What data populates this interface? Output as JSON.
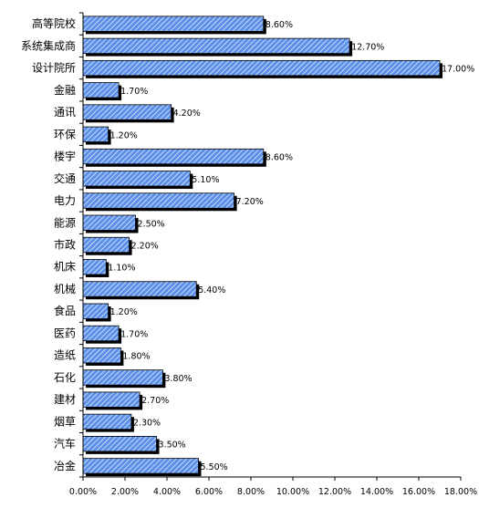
{
  "chart_data": {
    "type": "bar",
    "orientation": "horizontal",
    "categories": [
      "高等院校",
      "系统集成商",
      "设计院所",
      "金融",
      "通讯",
      "环保",
      "楼宇",
      "交通",
      "电力",
      "能源",
      "市政",
      "机床",
      "机械",
      "食品",
      "医药",
      "造纸",
      "石化",
      "建材",
      "烟草",
      "汽车",
      "冶金"
    ],
    "values": [
      8.6,
      12.7,
      17.0,
      1.7,
      4.2,
      1.2,
      8.6,
      5.1,
      7.2,
      2.5,
      2.2,
      1.1,
      5.4,
      1.2,
      1.7,
      1.8,
      3.8,
      2.7,
      2.3,
      3.5,
      5.5
    ],
    "value_labels": [
      "8.60%",
      "12.70%",
      "17.00%",
      "1.70%",
      "4.20%",
      "1.20%",
      "8.60%",
      "5.10%",
      "7.20%",
      "2.50%",
      "2.20%",
      "1.10%",
      "5.40%",
      "1.20%",
      "1.70%",
      "1.80%",
      "3.80%",
      "2.70%",
      "2.30%",
      "3.50%",
      "5.50%"
    ],
    "xlim": [
      0,
      18
    ],
    "x_ticks": [
      "0.00%",
      "2.00%",
      "4.00%",
      "6.00%",
      "8.00%",
      "10.00%",
      "12.00%",
      "14.00%",
      "16.00%",
      "18.00%"
    ],
    "title": "",
    "xlabel": "",
    "ylabel": "",
    "grid": false,
    "legend": "none",
    "colors": {
      "bar_fill": "#5b8fe8",
      "bar_stripe": "#ffffff",
      "bar_outline": "#000000",
      "shadow": "#000000",
      "axis": "#000000"
    }
  }
}
